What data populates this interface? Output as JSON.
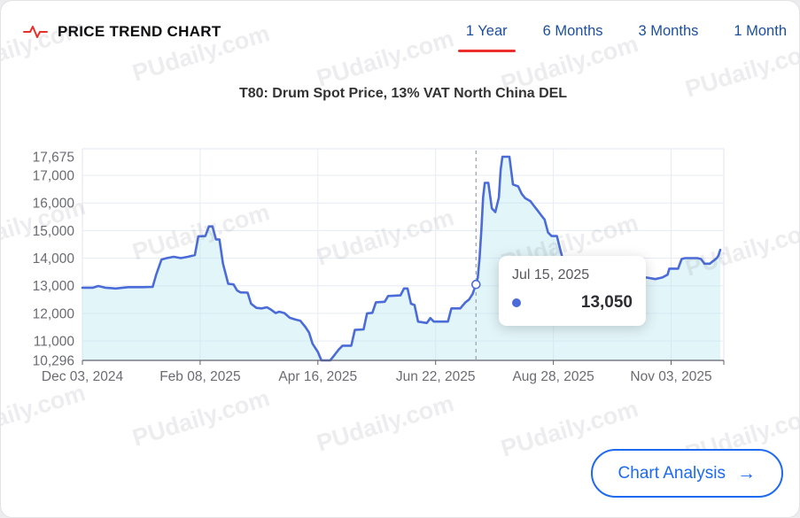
{
  "header": {
    "title": "PRICE TREND CHART"
  },
  "tabs": [
    {
      "label": "1 Year",
      "active": true
    },
    {
      "label": "6 Months",
      "active": false
    },
    {
      "label": "3 Months",
      "active": false
    },
    {
      "label": "1 Month",
      "active": false
    }
  ],
  "watermark": "PUdaily.com",
  "tooltip": {
    "date": "Jul 15, 2025",
    "value": "13,050"
  },
  "button": {
    "label": "Chart Analysis",
    "arrow": "→"
  },
  "colors": {
    "tab_blue": "#1b4f9e",
    "tab_underline_red": "#ee2d2d",
    "pulse_icon_red": "#e8302a",
    "line_blue": "#4b6cd8",
    "area_fill": "#bfe9f0",
    "grid_line": "#e6ecf4",
    "plot_border": "#dfe5ee",
    "axis_line": "#62626c",
    "axis_text": "#6b6b73",
    "button_blue": "#1d6af1"
  },
  "chart_data": {
    "type": "area",
    "title": "T80: Drum Spot Price, 13% VAT North China DEL",
    "xlabel": "",
    "ylabel": "",
    "ylim": [
      10296,
      17675
    ],
    "x_domain_days": [
      0,
      365
    ],
    "x_tick_days": [
      0,
      67,
      134,
      201,
      268,
      335
    ],
    "x_tick_labels": [
      "Dec 03, 2024",
      "Feb 08, 2025",
      "Apr 16, 2025",
      "Jun 22, 2025",
      "Aug 28, 2025",
      "Nov 03, 2025"
    ],
    "y_ticks": [
      10296,
      11000,
      12000,
      13000,
      14000,
      15000,
      16000,
      17000,
      17675
    ],
    "y_tick_labels": [
      "10,296",
      "11,000",
      "12,000",
      "13,000",
      "14,000",
      "15,000",
      "16,000",
      "17,000",
      "17,675"
    ],
    "grid": true,
    "legend": "none",
    "hover_point": {
      "t": 224,
      "value": 13050,
      "date": "Jul 15, 2025",
      "display": "13,050"
    },
    "points": [
      [
        0,
        12930
      ],
      [
        6,
        12930
      ],
      [
        9,
        12990
      ],
      [
        13,
        12930
      ],
      [
        19,
        12900
      ],
      [
        26,
        12950
      ],
      [
        34,
        12950
      ],
      [
        40,
        12960
      ],
      [
        42,
        13400
      ],
      [
        45,
        13950
      ],
      [
        48,
        14000
      ],
      [
        52,
        14050
      ],
      [
        56,
        14000
      ],
      [
        60,
        14050
      ],
      [
        64,
        14110
      ],
      [
        66,
        14790
      ],
      [
        70,
        14800
      ],
      [
        72,
        15150
      ],
      [
        74,
        15150
      ],
      [
        76,
        14680
      ],
      [
        78,
        14680
      ],
      [
        80,
        13800
      ],
      [
        83,
        13070
      ],
      [
        86,
        13050
      ],
      [
        88,
        12830
      ],
      [
        90,
        12760
      ],
      [
        94,
        12750
      ],
      [
        96,
        12350
      ],
      [
        99,
        12200
      ],
      [
        102,
        12180
      ],
      [
        105,
        12220
      ],
      [
        107,
        12150
      ],
      [
        110,
        12010
      ],
      [
        112,
        12060
      ],
      [
        115,
        12010
      ],
      [
        118,
        11840
      ],
      [
        121,
        11780
      ],
      [
        124,
        11730
      ],
      [
        127,
        11500
      ],
      [
        129,
        11300
      ],
      [
        131,
        10900
      ],
      [
        134,
        10600
      ],
      [
        136,
        10296
      ],
      [
        141,
        10296
      ],
      [
        143,
        10450
      ],
      [
        146,
        10700
      ],
      [
        148,
        10830
      ],
      [
        153,
        10830
      ],
      [
        155,
        11400
      ],
      [
        160,
        11420
      ],
      [
        162,
        12000
      ],
      [
        165,
        12020
      ],
      [
        167,
        12400
      ],
      [
        172,
        12420
      ],
      [
        174,
        12630
      ],
      [
        181,
        12650
      ],
      [
        183,
        12900
      ],
      [
        185,
        12900
      ],
      [
        187,
        12350
      ],
      [
        189,
        12300
      ],
      [
        191,
        11700
      ],
      [
        196,
        11650
      ],
      [
        198,
        11830
      ],
      [
        200,
        11700
      ],
      [
        208,
        11700
      ],
      [
        210,
        12180
      ],
      [
        215,
        12180
      ],
      [
        218,
        12400
      ],
      [
        220,
        12500
      ],
      [
        222,
        12700
      ],
      [
        224,
        13050
      ],
      [
        225,
        13300
      ],
      [
        226,
        14000
      ],
      [
        227,
        15000
      ],
      [
        228,
        16200
      ],
      [
        229,
        16730
      ],
      [
        231,
        16730
      ],
      [
        233,
        15800
      ],
      [
        235,
        15670
      ],
      [
        237,
        16200
      ],
      [
        238,
        17200
      ],
      [
        239,
        17675
      ],
      [
        243,
        17675
      ],
      [
        245,
        16670
      ],
      [
        248,
        16600
      ],
      [
        250,
        16330
      ],
      [
        252,
        16170
      ],
      [
        255,
        16060
      ],
      [
        257,
        15890
      ],
      [
        259,
        15730
      ],
      [
        261,
        15560
      ],
      [
        263,
        15400
      ],
      [
        265,
        14930
      ],
      [
        267,
        14800
      ],
      [
        270,
        14800
      ],
      [
        272,
        14300
      ],
      [
        274,
        13800
      ],
      [
        276,
        13730
      ],
      [
        278,
        13620
      ],
      [
        281,
        13620
      ],
      [
        284,
        13400
      ],
      [
        286,
        13300
      ],
      [
        289,
        13240
      ],
      [
        292,
        13200
      ],
      [
        296,
        13240
      ],
      [
        298,
        13400
      ],
      [
        300,
        13200
      ],
      [
        304,
        13150
      ],
      [
        312,
        13150
      ],
      [
        315,
        13240
      ],
      [
        318,
        13300
      ],
      [
        321,
        13300
      ],
      [
        326,
        13240
      ],
      [
        330,
        13300
      ],
      [
        333,
        13400
      ],
      [
        334,
        13620
      ],
      [
        339,
        13620
      ],
      [
        341,
        13970
      ],
      [
        343,
        14000
      ],
      [
        350,
        14000
      ],
      [
        352,
        13970
      ],
      [
        354,
        13800
      ],
      [
        357,
        13800
      ],
      [
        359,
        13900
      ],
      [
        361,
        14000
      ],
      [
        362,
        14100
      ],
      [
        363,
        14300
      ]
    ]
  }
}
